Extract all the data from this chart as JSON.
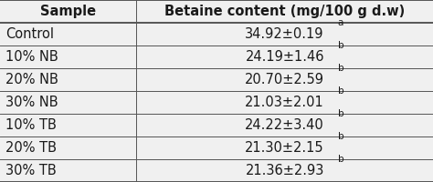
{
  "col1_header": "Sample",
  "col2_header": "Betaine content (mg/100 g d.w)",
  "rows": [
    {
      "sample": "Control",
      "value": "34.92±0.19",
      "superscript": "a"
    },
    {
      "sample": "10% NB",
      "value": "24.19±1.46",
      "superscript": "b"
    },
    {
      "sample": "20% NB",
      "value": "20.70±2.59",
      "superscript": "b"
    },
    {
      "sample": "30% NB",
      "value": "21.03±2.01",
      "superscript": "b"
    },
    {
      "sample": "10% TB",
      "value": "24.22±3.40",
      "superscript": "b"
    },
    {
      "sample": "20% TB",
      "value": "21.30±2.15",
      "superscript": "b"
    },
    {
      "sample": "30% TB",
      "value": "21.36±2.93",
      "superscript": "b"
    }
  ],
  "bg_color": "#f0f0f0",
  "text_color": "#1a1a1a",
  "header_fontsize": 10.5,
  "cell_fontsize": 10.5,
  "sup_fontsize": 7.5,
  "col_split": 0.315,
  "fig_width": 4.74,
  "fig_height": 2.0,
  "dpi": 100,
  "line_color": "#555555",
  "thick_lw": 1.4,
  "thin_lw": 0.7
}
